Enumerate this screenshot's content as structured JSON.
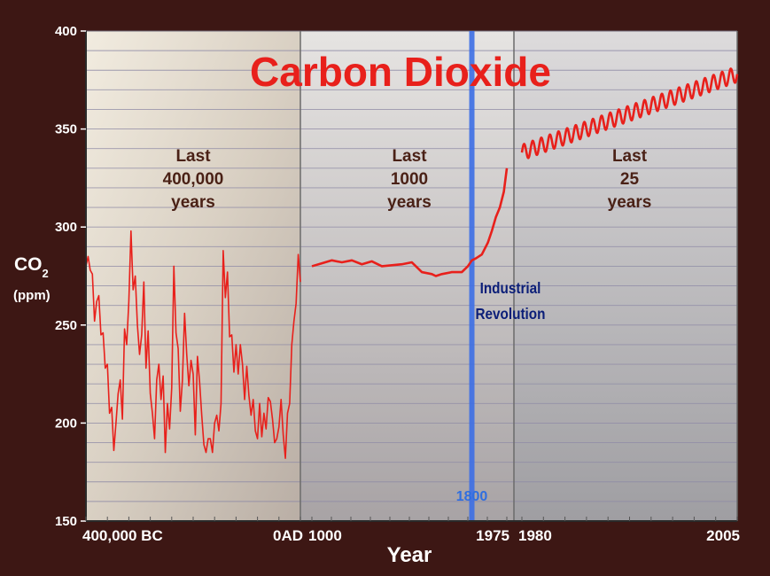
{
  "chart_data": {
    "type": "line",
    "title": "Carbon Dioxide",
    "xlabel": "Year",
    "ylabel": "CO2",
    "ylabel_sub": "2",
    "ylabel_main": "CO",
    "yunit": "(ppm)",
    "ylim": [
      150,
      400
    ],
    "yticks": [
      "400",
      "350",
      "300",
      "250",
      "200",
      "150"
    ],
    "grid": true,
    "panels": [
      {
        "label_lines": [
          "Last",
          "400,000",
          "years"
        ],
        "xtick_left": "400,000 BC",
        "xtick_right": "0AD",
        "xlim": [
          -400000,
          0
        ],
        "series": [
          {
            "color": "#e8201b",
            "x": [
              -400000,
              -396000,
              -392000,
              -388000,
              -384000,
              -380000,
              -376000,
              -372000,
              -368000,
              -364000,
              -360000,
              -356000,
              -352000,
              -348000,
              -344000,
              -340000,
              -336000,
              -332000,
              -328000,
              -324000,
              -320000,
              -316000,
              -312000,
              -308000,
              -304000,
              -300000,
              -296000,
              -292000,
              -288000,
              -284000,
              -280000,
              -276000,
              -272000,
              -268000,
              -264000,
              -260000,
              -256000,
              -252000,
              -248000,
              -244000,
              -240000,
              -236000,
              -232000,
              -228000,
              -224000,
              -220000,
              -216000,
              -212000,
              -208000,
              -204000,
              -200000,
              -196000,
              -192000,
              -188000,
              -184000,
              -180000,
              -176000,
              -172000,
              -168000,
              -164000,
              -160000,
              -156000,
              -152000,
              -148000,
              -144000,
              -140000,
              -136000,
              -132000,
              -128000,
              -124000,
              -120000,
              -116000,
              -112000,
              -108000,
              -104000,
              -100000,
              -96000,
              -92000,
              -88000,
              -84000,
              -80000,
              -76000,
              -72000,
              -68000,
              -64000,
              -60000,
              -56000,
              -52000,
              -48000,
              -44000,
              -40000,
              -36000,
              -32000,
              -28000,
              -24000,
              -20000,
              -16000,
              -12000,
              -8000,
              -4000,
              0
            ],
            "y": [
              280,
              285,
              278,
              276,
              252,
              262,
              265,
              245,
              246,
              228,
              230,
              205,
              208,
              186,
              200,
              215,
              222,
              202,
              248,
              240,
              262,
              298,
              268,
              275,
              250,
              235,
              245,
              272,
              228,
              247,
              215,
              205,
              192,
              222,
              230,
              212,
              224,
              185,
              210,
              197,
              218,
              280,
              246,
              238,
              206,
              222,
              256,
              235,
              219,
              232,
              225,
              194,
              234,
              221,
              204,
              189,
              185,
              192,
              192,
              185,
              200,
              204,
              196,
              210,
              288,
              264,
              277,
              244,
              245,
              226,
              240,
              225,
              240,
              230,
              212,
              229,
              214,
              204,
              212,
              196,
              192,
              210,
              193,
              205,
              197,
              213,
              211,
              202,
              190,
              192,
              198,
              212,
              194,
              182,
              205,
              210,
              240,
              252,
              261,
              286,
              272
            ]
          }
        ]
      },
      {
        "label_lines": [
          "Last",
          "1000",
          "years"
        ],
        "xtick_left": "1000",
        "xtick_right": "1975",
        "xlim": [
          1000,
          1975
        ],
        "marker": {
          "x": 1800,
          "label": "1800",
          "color": "#3d6fe6"
        },
        "annotation_lines": [
          "Industrial",
          "Revolution"
        ],
        "series": [
          {
            "color": "#e8201b",
            "x": [
              1000,
              1050,
              1100,
              1150,
              1200,
              1250,
              1300,
              1350,
              1400,
              1450,
              1500,
              1550,
              1600,
              1620,
              1650,
              1700,
              1750,
              1780,
              1800,
              1820,
              1850,
              1880,
              1900,
              1920,
              1940,
              1960,
              1975
            ],
            "y": [
              280,
              281.5,
              283,
              282,
              283,
              281,
              282.5,
              280,
              280.5,
              281,
              282,
              277,
              276,
              275,
              276,
              277,
              277,
              280,
              283,
              284,
              286,
              292,
              298,
              305,
              310,
              318,
              330
            ]
          }
        ]
      },
      {
        "label_lines": [
          "Last",
          "25",
          "years"
        ],
        "xtick_left": "1980",
        "xtick_right": "2005",
        "xlim": [
          1980,
          2005
        ],
        "series": [
          {
            "color": "#e8201b",
            "seasonal": true,
            "trend_start": [
              1980,
              338
            ],
            "trend_end": [
              2005,
              378
            ],
            "amplitude": 4,
            "cycles_per_year": 1
          }
        ]
      }
    ]
  }
}
